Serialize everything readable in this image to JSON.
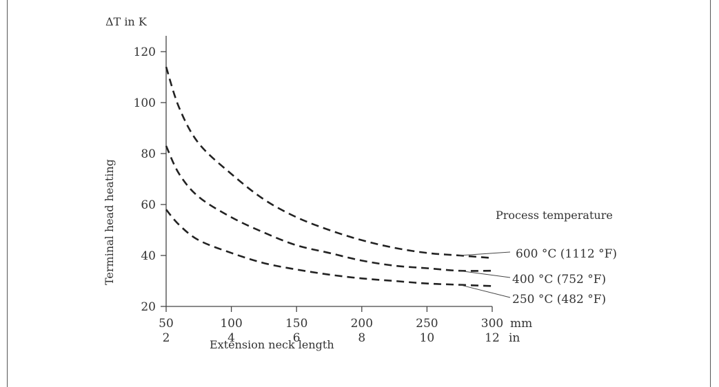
{
  "chart_data": {
    "type": "line",
    "unit_label": "ΔT in K",
    "ylabel": "Terminal head heating",
    "xlabel": "Extension neck length",
    "x_unit_mm": "mm",
    "x_unit_in": "in",
    "ylim": [
      20,
      120
    ],
    "xlim": [
      50,
      300
    ],
    "yticks": [
      "20",
      "40",
      "60",
      "80",
      "100",
      "120"
    ],
    "xticks_mm": [
      "50",
      "100",
      "150",
      "200",
      "250",
      "300"
    ],
    "xticks_in": [
      "2",
      "4",
      "6",
      "8",
      "10",
      "12"
    ],
    "legend_title": "Process temperature",
    "grid": false,
    "series": [
      {
        "name": "600 °C (1112 °F)",
        "x": [
          50,
          60,
          75,
          100,
          125,
          150,
          175,
          200,
          225,
          250,
          275,
          300
        ],
        "y": [
          114,
          98,
          84,
          72,
          62,
          55,
          50,
          46,
          43,
          41,
          40,
          39
        ]
      },
      {
        "name": "400 °C (752 °F)",
        "x": [
          50,
          60,
          75,
          100,
          125,
          150,
          175,
          200,
          225,
          250,
          275,
          300
        ],
        "y": [
          83,
          72,
          63,
          55,
          49,
          44,
          41,
          38,
          36,
          35,
          34,
          34
        ]
      },
      {
        "name": "250 °C (482 °F)",
        "x": [
          50,
          60,
          75,
          100,
          125,
          150,
          175,
          200,
          225,
          250,
          275,
          300
        ],
        "y": [
          58,
          52,
          46,
          41,
          37,
          34.5,
          32.5,
          31,
          30,
          29,
          28.5,
          28
        ]
      }
    ]
  }
}
